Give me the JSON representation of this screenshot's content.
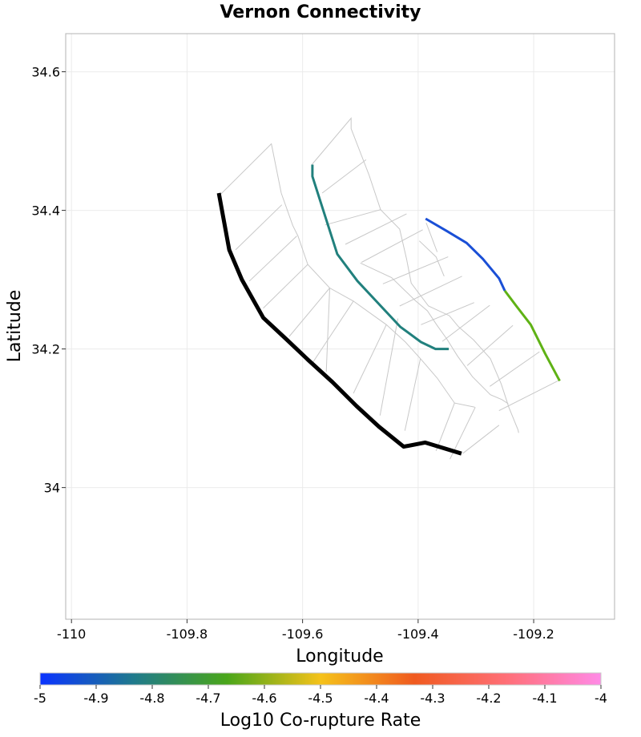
{
  "chart_data": {
    "type": "line",
    "title": "Vernon Connectivity",
    "xlabel": "Longitude",
    "ylabel": "Latitude",
    "xlim": [
      -110.01,
      -109.06
    ],
    "ylim": [
      33.81,
      34.655
    ],
    "x_ticks": [
      -110,
      -109.8,
      -109.6,
      -109.4,
      -109.2
    ],
    "x_tick_labels": [
      "-110",
      "-109.8",
      "-109.6",
      "-109.4",
      "-109.2"
    ],
    "y_ticks": [
      34,
      34.2,
      34.4,
      34.6
    ],
    "y_tick_labels": [
      "34",
      "34.2",
      "34.4",
      "34.6"
    ],
    "grid": true,
    "colorbar": {
      "label": "Log10 Co-rupture Rate",
      "range": [
        -5,
        -4
      ],
      "tick_values": [
        -5,
        -4.9,
        -4.8,
        -4.7,
        -4.6,
        -4.5,
        -4.4,
        -4.3,
        -4.2,
        -4.1,
        -4
      ],
      "tick_labels": [
        "-5",
        "-4.9",
        "-4.8",
        "-4.7",
        "-4.6",
        "-4.5",
        "-4.4",
        "-4.3",
        "-4.2",
        "-4.1",
        "-4"
      ],
      "colors": [
        "#0a33ff",
        "#1f7a8c",
        "#4aa61a",
        "#f5c21a",
        "#f05a1f",
        "#ff6f78",
        "#ff8ae6"
      ]
    },
    "traces": [
      [
        [
          -109.742,
          34.423
        ],
        [
          -109.654,
          34.496
        ],
        [
          -109.637,
          34.425
        ]
      ],
      [
        [
          -109.584,
          34.466
        ],
        [
          -109.516,
          34.533
        ],
        [
          -109.516,
          34.518
        ],
        [
          -109.485,
          34.451
        ],
        [
          -109.465,
          34.401
        ],
        [
          -109.432,
          34.373
        ],
        [
          -109.42,
          34.33
        ],
        [
          -109.412,
          34.295
        ],
        [
          -109.382,
          34.262
        ],
        [
          -109.346,
          34.248
        ],
        [
          -109.33,
          34.232
        ],
        [
          -109.304,
          34.213
        ],
        [
          -109.275,
          34.186
        ],
        [
          -109.256,
          34.149
        ],
        [
          -109.243,
          34.116
        ],
        [
          -109.227,
          34.083
        ],
        [
          -109.226,
          34.079
        ]
      ],
      [
        [
          -109.637,
          34.425
        ],
        [
          -109.617,
          34.378
        ],
        [
          -109.608,
          34.363
        ],
        [
          -109.591,
          34.322
        ],
        [
          -109.553,
          34.288
        ],
        [
          -109.512,
          34.269
        ],
        [
          -109.455,
          34.235
        ],
        [
          -109.422,
          34.21
        ],
        [
          -109.396,
          34.186
        ],
        [
          -109.367,
          34.158
        ],
        [
          -109.337,
          34.122
        ],
        [
          -109.302,
          34.116
        ]
      ],
      [
        [
          -109.5,
          34.324
        ],
        [
          -109.446,
          34.303
        ],
        [
          -109.405,
          34.27
        ],
        [
          -109.384,
          34.255
        ],
        [
          -109.368,
          34.235
        ],
        [
          -109.35,
          34.214
        ],
        [
          -109.332,
          34.19
        ],
        [
          -109.306,
          34.16
        ],
        [
          -109.275,
          34.134
        ],
        [
          -109.255,
          34.127
        ],
        [
          -109.244,
          34.121
        ]
      ],
      [
        [
          -109.398,
          34.356
        ],
        [
          -109.369,
          34.333
        ],
        [
          -109.355,
          34.305
        ]
      ],
      [
        [
          -109.386,
          34.382
        ],
        [
          -109.367,
          34.34
        ]
      ],
      [
        [
          -109.716,
          34.343
        ],
        [
          -109.636,
          34.408
        ]
      ],
      [
        [
          -109.692,
          34.298
        ],
        [
          -109.61,
          34.363
        ]
      ],
      [
        [
          -109.668,
          34.259
        ],
        [
          -109.591,
          34.322
        ]
      ],
      [
        [
          -109.623,
          34.218
        ],
        [
          -109.553,
          34.288
        ]
      ],
      [
        [
          -109.582,
          34.181
        ],
        [
          -109.512,
          34.269
        ]
      ],
      [
        [
          -109.559,
          34.167
        ],
        [
          -109.553,
          34.288
        ]
      ],
      [
        [
          -109.512,
          34.136
        ],
        [
          -109.455,
          34.235
        ]
      ],
      [
        [
          -109.466,
          34.104
        ],
        [
          -109.435,
          34.244
        ]
      ],
      [
        [
          -109.423,
          34.082
        ],
        [
          -109.396,
          34.186
        ]
      ],
      [
        [
          -109.369,
          34.053
        ],
        [
          -109.337,
          34.122
        ]
      ],
      [
        [
          -109.345,
          34.041
        ],
        [
          -109.301,
          34.116
        ]
      ],
      [
        [
          -109.323,
          34.049
        ],
        [
          -109.26,
          34.09
        ]
      ],
      [
        [
          -109.566,
          34.425
        ],
        [
          -109.49,
          34.473
        ]
      ],
      [
        [
          -109.561,
          34.379
        ],
        [
          -109.465,
          34.401
        ]
      ],
      [
        [
          -109.526,
          34.351
        ],
        [
          -109.42,
          34.395
        ]
      ],
      [
        [
          -109.498,
          34.325
        ],
        [
          -109.392,
          34.372
        ]
      ],
      [
        [
          -109.461,
          34.294
        ],
        [
          -109.348,
          34.333
        ]
      ],
      [
        [
          -109.432,
          34.262
        ],
        [
          -109.324,
          34.305
        ]
      ],
      [
        [
          -109.395,
          34.235
        ],
        [
          -109.303,
          34.267
        ]
      ],
      [
        [
          -109.358,
          34.211
        ],
        [
          -109.276,
          34.263
        ]
      ],
      [
        [
          -109.315,
          34.176
        ],
        [
          -109.236,
          34.234
        ]
      ],
      [
        [
          -109.276,
          34.146
        ],
        [
          -109.19,
          34.196
        ]
      ],
      [
        [
          -109.26,
          34.111
        ],
        [
          -109.158,
          34.154
        ]
      ]
    ],
    "ruptures": [
      {
        "points": [
          [
            -109.745,
            34.425
          ],
          [
            -109.727,
            34.343
          ],
          [
            -109.705,
            34.3
          ],
          [
            -109.668,
            34.245
          ],
          [
            -109.628,
            34.214
          ],
          [
            -109.59,
            34.184
          ],
          [
            -109.548,
            34.152
          ],
          [
            -109.507,
            34.118
          ],
          [
            -109.468,
            34.088
          ],
          [
            -109.425,
            34.059
          ],
          [
            -109.388,
            34.065
          ],
          [
            -109.325,
            34.049
          ]
        ],
        "color": "#000000",
        "width": 5
      },
      {
        "points": [
          [
            -109.583,
            34.466
          ],
          [
            -109.583,
            34.449
          ],
          [
            -109.563,
            34.397
          ],
          [
            -109.54,
            34.337
          ],
          [
            -109.505,
            34.298
          ],
          [
            -109.468,
            34.265
          ],
          [
            -109.431,
            34.232
          ],
          [
            -109.395,
            34.21
          ],
          [
            -109.37,
            34.2
          ],
          [
            -109.347,
            34.2
          ]
        ],
        "color": "#21807d",
        "width": 3
      },
      {
        "points": [
          [
            -109.387,
            34.388
          ],
          [
            -109.35,
            34.37
          ],
          [
            -109.316,
            34.353
          ],
          [
            -109.288,
            34.33
          ],
          [
            -109.26,
            34.302
          ],
          [
            -109.25,
            34.284
          ]
        ],
        "color": "#1a4fd6",
        "width": 3
      },
      {
        "points": [
          [
            -109.25,
            34.284
          ],
          [
            -109.23,
            34.262
          ],
          [
            -109.205,
            34.235
          ],
          [
            -109.18,
            34.193
          ],
          [
            -109.155,
            34.154
          ]
        ],
        "color": "#5fb215",
        "width": 3
      }
    ]
  }
}
